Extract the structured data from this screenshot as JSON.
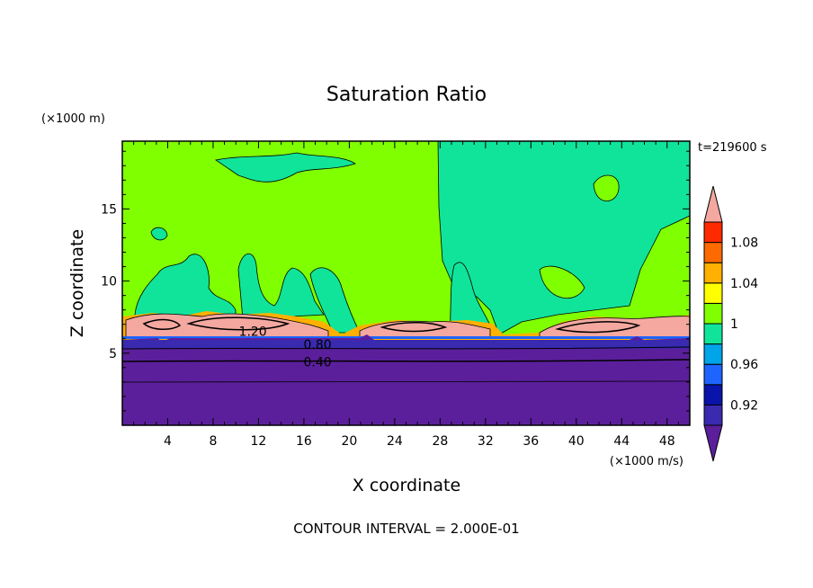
{
  "chart_data": {
    "type": "heatmap",
    "title": "Saturation Ratio",
    "xlabel": "X coordinate",
    "ylabel": "Z coordinate",
    "x_unit": "(×1000 m/s)",
    "y_unit": "(×1000 m)",
    "time_label": "t=219600 s",
    "footer": "CONTOUR INTERVAL = 2.000E-01",
    "xlim": [
      0,
      50
    ],
    "ylim": [
      0,
      19.7
    ],
    "x_ticks": [
      "4",
      "8",
      "12",
      "16",
      "20",
      "24",
      "28",
      "32",
      "36",
      "40",
      "44",
      "48"
    ],
    "y_ticks": [
      "5",
      "10",
      "15"
    ],
    "colorbar_labels": [
      "1.08",
      "1.04",
      "1",
      "0.96",
      "0.92"
    ],
    "colorbar_colors": [
      "#5b1f9b",
      "#3a2ab0",
      "#0a14aa",
      "#1e64ff",
      "#00a4e8",
      "#10e49a",
      "#80ff00",
      "#ffff00",
      "#ffb000",
      "#ff6a00",
      "#ff2a00",
      "#f4a8a0"
    ],
    "contour_labels": [
      {
        "text": "1.20",
        "x": 11.5,
        "y": 6.5
      },
      {
        "text": "0.80",
        "x": 17.2,
        "y": 5.6
      },
      {
        "text": "0.40",
        "x": 17.2,
        "y": 4.4
      }
    ],
    "fields": {
      "background": "#80ff00",
      "moist_patch": "#10e49a",
      "dry_layer": "#5b1f9b",
      "supersaturated": "#f4a8a0"
    }
  }
}
